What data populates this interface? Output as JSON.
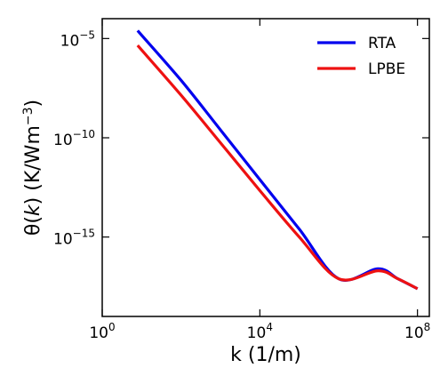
{
  "chart_data": {
    "type": "line",
    "x_scale": "log",
    "y_scale": "log",
    "xlabel": "k (1/m)",
    "ylabel_prefix": "θ(",
    "ylabel_var": "k",
    "ylabel_suffix": ") (K/Wm",
    "ylabel_exp": "−3",
    "ylabel_close": ")",
    "xlim": [
      1,
      200000000
    ],
    "ylim": [
      1e-19,
      0.0001
    ],
    "x_ticks": [
      {
        "value": 1,
        "base": "10",
        "exp": "0"
      },
      {
        "value": 10000,
        "base": "10",
        "exp": "4"
      },
      {
        "value": 100000000,
        "base": "10",
        "exp": "8"
      }
    ],
    "y_ticks": [
      {
        "value": 1e-05,
        "base": "10",
        "exp": "−5"
      },
      {
        "value": 1e-10,
        "base": "10",
        "exp": "−10"
      },
      {
        "value": 1e-15,
        "base": "10",
        "exp": "−15"
      }
    ],
    "legend_position": "top-right",
    "series": [
      {
        "name": "RTA",
        "color": "#0000ee",
        "x": [
          7.9,
          100,
          1000,
          10000,
          100000,
          1000000,
          10000000,
          31600000,
          100000000
        ],
        "y": [
          2.5e-05,
          7.9e-08,
          2.5e-10,
          7.9e-13,
          2.5e-15,
          7.9e-18,
          2.5e-17,
          7.9e-18,
          2.5e-18
        ]
      },
      {
        "name": "LPBE",
        "color": "#ee1111",
        "x": [
          7.9,
          100,
          1000,
          10000,
          100000,
          1000000,
          10000000,
          31600000,
          100000000
        ],
        "y": [
          4.5e-06,
          1.4e-08,
          5.6e-11,
          2.2e-13,
          1e-15,
          7.9e-18,
          2e-17,
          7.9e-18,
          2.5e-18
        ]
      }
    ]
  }
}
